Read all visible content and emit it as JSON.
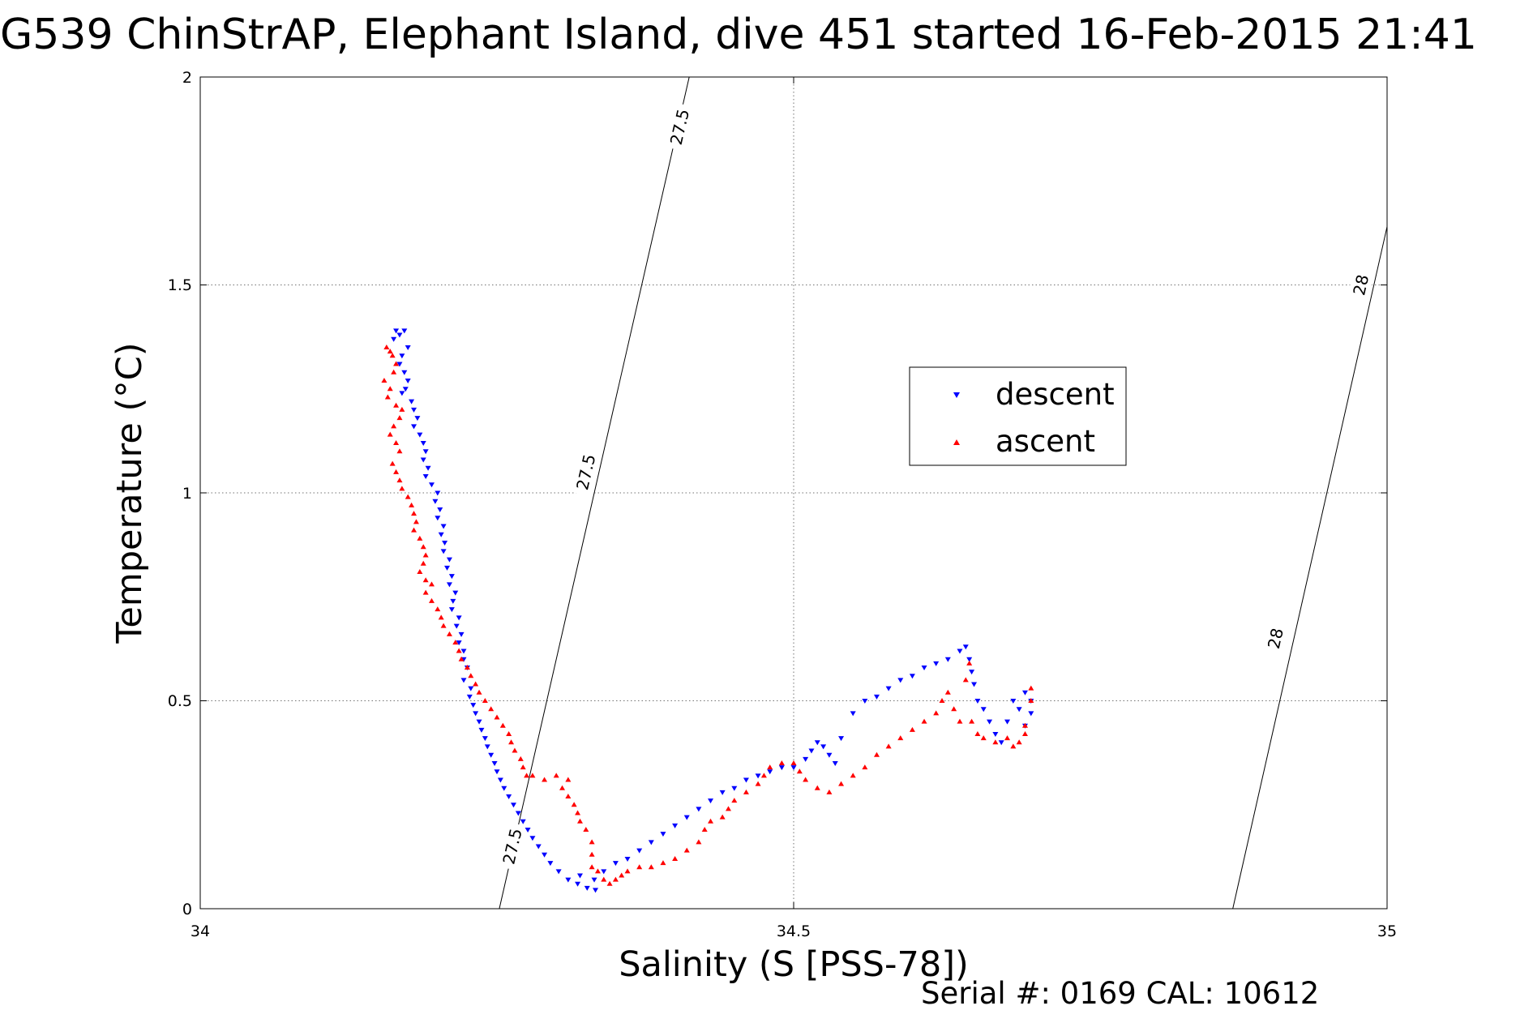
{
  "chart_data": {
    "type": "scatter",
    "title": "G539 ChinStrAP, Elephant Island, dive 451 started 16-Feb-2015 21:41",
    "xlabel": "Salinity (S [PSS-78])",
    "ylabel": "Temperature (°C)",
    "xlim": [
      34,
      35
    ],
    "ylim": [
      0,
      2
    ],
    "xticks": [
      "34",
      "34.5",
      "35"
    ],
    "yticks": [
      "0",
      "0.5",
      "1",
      "1.5",
      "2"
    ],
    "grid": true,
    "legend_position": "upper-right of center",
    "footer": "Serial #: 0169 CAL: 10612",
    "colors": {
      "descent": "#0000ff",
      "ascent": "#ff0000",
      "contour": "#000000"
    },
    "contours": [
      {
        "level": "27.5",
        "points": [
          [
            34.252,
            0.0
          ],
          [
            34.412,
            2.0
          ]
        ],
        "labels": [
          [
            34.263,
            0.15
          ],
          [
            34.325,
            1.05
          ],
          [
            34.404,
            1.88
          ]
        ]
      },
      {
        "level": "28",
        "points": [
          [
            34.87,
            0.0
          ],
          [
            35.0,
            1.64
          ]
        ],
        "labels": [
          [
            34.906,
            0.65
          ],
          [
            34.978,
            1.5
          ]
        ]
      }
    ],
    "series": [
      {
        "name": "descent",
        "marker": "triangle-down",
        "points": [
          [
            34.165,
            1.39
          ],
          [
            34.168,
            1.38
          ],
          [
            34.172,
            1.39
          ],
          [
            34.163,
            1.37
          ],
          [
            34.175,
            1.35
          ],
          [
            34.17,
            1.33
          ],
          [
            34.168,
            1.31
          ],
          [
            34.172,
            1.29
          ],
          [
            34.175,
            1.27
          ],
          [
            34.173,
            1.25
          ],
          [
            34.17,
            1.24
          ],
          [
            34.178,
            1.22
          ],
          [
            34.18,
            1.2
          ],
          [
            34.183,
            1.18
          ],
          [
            34.18,
            1.16
          ],
          [
            34.185,
            1.14
          ],
          [
            34.188,
            1.12
          ],
          [
            34.19,
            1.1
          ],
          [
            34.188,
            1.08
          ],
          [
            34.192,
            1.06
          ],
          [
            34.19,
            1.04
          ],
          [
            34.195,
            1.02
          ],
          [
            34.2,
            1.0
          ],
          [
            34.198,
            0.98
          ],
          [
            34.202,
            0.96
          ],
          [
            34.2,
            0.94
          ],
          [
            34.205,
            0.92
          ],
          [
            34.203,
            0.9
          ],
          [
            34.206,
            0.88
          ],
          [
            34.205,
            0.86
          ],
          [
            34.21,
            0.84
          ],
          [
            34.208,
            0.82
          ],
          [
            34.212,
            0.8
          ],
          [
            34.21,
            0.78
          ],
          [
            34.215,
            0.76
          ],
          [
            34.213,
            0.74
          ],
          [
            34.212,
            0.72
          ],
          [
            34.218,
            0.7
          ],
          [
            34.216,
            0.68
          ],
          [
            34.22,
            0.66
          ],
          [
            34.218,
            0.64
          ],
          [
            34.222,
            0.62
          ],
          [
            34.222,
            0.6
          ],
          [
            34.225,
            0.58
          ],
          [
            34.222,
            0.55
          ],
          [
            34.228,
            0.53
          ],
          [
            34.227,
            0.51
          ],
          [
            34.23,
            0.49
          ],
          [
            34.232,
            0.47
          ],
          [
            34.235,
            0.45
          ],
          [
            34.237,
            0.43
          ],
          [
            34.24,
            0.41
          ],
          [
            34.242,
            0.39
          ],
          [
            34.245,
            0.37
          ],
          [
            34.248,
            0.35
          ],
          [
            34.25,
            0.33
          ],
          [
            34.253,
            0.31
          ],
          [
            34.256,
            0.29
          ],
          [
            34.26,
            0.27
          ],
          [
            34.264,
            0.25
          ],
          [
            34.268,
            0.23
          ],
          [
            34.272,
            0.21
          ],
          [
            34.276,
            0.19
          ],
          [
            34.28,
            0.17
          ],
          [
            34.285,
            0.15
          ],
          [
            34.29,
            0.13
          ],
          [
            34.295,
            0.11
          ],
          [
            34.302,
            0.09
          ],
          [
            34.31,
            0.07
          ],
          [
            34.318,
            0.06
          ],
          [
            34.326,
            0.05
          ],
          [
            34.333,
            0.045
          ],
          [
            34.32,
            0.08
          ],
          [
            34.332,
            0.07
          ],
          [
            34.34,
            0.09
          ],
          [
            34.35,
            0.11
          ],
          [
            34.36,
            0.12
          ],
          [
            34.37,
            0.14
          ],
          [
            34.38,
            0.16
          ],
          [
            34.39,
            0.18
          ],
          [
            34.4,
            0.2
          ],
          [
            34.41,
            0.22
          ],
          [
            34.42,
            0.24
          ],
          [
            34.43,
            0.26
          ],
          [
            34.44,
            0.28
          ],
          [
            34.45,
            0.29
          ],
          [
            34.46,
            0.31
          ],
          [
            34.47,
            0.32
          ],
          [
            34.48,
            0.33
          ],
          [
            34.49,
            0.34
          ],
          [
            34.5,
            0.34
          ],
          [
            34.51,
            0.36
          ],
          [
            34.515,
            0.38
          ],
          [
            34.52,
            0.4
          ],
          [
            34.525,
            0.39
          ],
          [
            34.53,
            0.37
          ],
          [
            34.535,
            0.35
          ],
          [
            34.54,
            0.41
          ],
          [
            34.55,
            0.47
          ],
          [
            34.56,
            0.5
          ],
          [
            34.57,
            0.51
          ],
          [
            34.58,
            0.53
          ],
          [
            34.59,
            0.55
          ],
          [
            34.6,
            0.56
          ],
          [
            34.61,
            0.58
          ],
          [
            34.62,
            0.59
          ],
          [
            34.63,
            0.6
          ],
          [
            34.64,
            0.62
          ],
          [
            34.645,
            0.63
          ],
          [
            34.648,
            0.6
          ],
          [
            34.65,
            0.57
          ],
          [
            34.652,
            0.54
          ],
          [
            34.655,
            0.5
          ],
          [
            34.66,
            0.48
          ],
          [
            34.665,
            0.45
          ],
          [
            34.67,
            0.42
          ],
          [
            34.675,
            0.4
          ],
          [
            34.68,
            0.45
          ],
          [
            34.685,
            0.5
          ],
          [
            34.69,
            0.48
          ],
          [
            34.695,
            0.44
          ],
          [
            34.7,
            0.47
          ],
          [
            34.695,
            0.52
          ],
          [
            34.7,
            0.5
          ]
        ]
      },
      {
        "name": "ascent",
        "marker": "triangle-up",
        "points": [
          [
            34.157,
            1.35
          ],
          [
            34.16,
            1.34
          ],
          [
            34.162,
            1.33
          ],
          [
            34.165,
            1.31
          ],
          [
            34.163,
            1.29
          ],
          [
            34.155,
            1.27
          ],
          [
            34.16,
            1.25
          ],
          [
            34.158,
            1.23
          ],
          [
            34.165,
            1.21
          ],
          [
            34.17,
            1.2
          ],
          [
            34.168,
            1.18
          ],
          [
            34.163,
            1.16
          ],
          [
            34.16,
            1.14
          ],
          [
            34.165,
            1.12
          ],
          [
            34.168,
            1.1
          ],
          [
            34.162,
            1.07
          ],
          [
            34.165,
            1.05
          ],
          [
            34.168,
            1.03
          ],
          [
            34.17,
            1.01
          ],
          [
            34.175,
            0.99
          ],
          [
            34.178,
            0.97
          ],
          [
            34.18,
            0.95
          ],
          [
            34.182,
            0.93
          ],
          [
            34.18,
            0.91
          ],
          [
            34.185,
            0.89
          ],
          [
            34.188,
            0.87
          ],
          [
            34.19,
            0.85
          ],
          [
            34.188,
            0.83
          ],
          [
            34.185,
            0.81
          ],
          [
            34.19,
            0.79
          ],
          [
            34.195,
            0.78
          ],
          [
            34.19,
            0.76
          ],
          [
            34.195,
            0.74
          ],
          [
            34.2,
            0.72
          ],
          [
            34.203,
            0.7
          ],
          [
            34.205,
            0.68
          ],
          [
            34.21,
            0.66
          ],
          [
            34.215,
            0.64
          ],
          [
            34.218,
            0.62
          ],
          [
            34.22,
            0.6
          ],
          [
            34.225,
            0.58
          ],
          [
            34.228,
            0.56
          ],
          [
            34.232,
            0.54
          ],
          [
            34.235,
            0.52
          ],
          [
            34.24,
            0.5
          ],
          [
            34.245,
            0.48
          ],
          [
            34.25,
            0.46
          ],
          [
            34.255,
            0.44
          ],
          [
            34.26,
            0.42
          ],
          [
            34.262,
            0.4
          ],
          [
            34.265,
            0.38
          ],
          [
            34.27,
            0.36
          ],
          [
            34.272,
            0.34
          ],
          [
            34.275,
            0.32
          ],
          [
            34.28,
            0.32
          ],
          [
            34.29,
            0.31
          ],
          [
            34.3,
            0.32
          ],
          [
            34.31,
            0.31
          ],
          [
            34.305,
            0.29
          ],
          [
            34.31,
            0.27
          ],
          [
            34.315,
            0.25
          ],
          [
            34.318,
            0.23
          ],
          [
            34.32,
            0.21
          ],
          [
            34.325,
            0.19
          ],
          [
            34.33,
            0.16
          ],
          [
            34.33,
            0.13
          ],
          [
            34.33,
            0.1
          ],
          [
            34.335,
            0.09
          ],
          [
            34.34,
            0.07
          ],
          [
            34.345,
            0.06
          ],
          [
            34.35,
            0.07
          ],
          [
            34.355,
            0.08
          ],
          [
            34.36,
            0.09
          ],
          [
            34.37,
            0.1
          ],
          [
            34.38,
            0.1
          ],
          [
            34.39,
            0.11
          ],
          [
            34.4,
            0.12
          ],
          [
            34.41,
            0.14
          ],
          [
            34.42,
            0.16
          ],
          [
            34.425,
            0.19
          ],
          [
            34.43,
            0.21
          ],
          [
            34.44,
            0.22
          ],
          [
            34.445,
            0.24
          ],
          [
            34.45,
            0.26
          ],
          [
            34.46,
            0.28
          ],
          [
            34.47,
            0.3
          ],
          [
            34.475,
            0.32
          ],
          [
            34.48,
            0.34
          ],
          [
            34.49,
            0.35
          ],
          [
            34.5,
            0.35
          ],
          [
            34.505,
            0.33
          ],
          [
            34.51,
            0.31
          ],
          [
            34.52,
            0.29
          ],
          [
            34.53,
            0.28
          ],
          [
            34.54,
            0.3
          ],
          [
            34.55,
            0.32
          ],
          [
            34.56,
            0.34
          ],
          [
            34.57,
            0.37
          ],
          [
            34.58,
            0.39
          ],
          [
            34.59,
            0.41
          ],
          [
            34.6,
            0.43
          ],
          [
            34.61,
            0.45
          ],
          [
            34.62,
            0.47
          ],
          [
            34.625,
            0.5
          ],
          [
            34.63,
            0.52
          ],
          [
            34.635,
            0.48
          ],
          [
            34.64,
            0.45
          ],
          [
            34.645,
            0.55
          ],
          [
            34.648,
            0.59
          ],
          [
            34.65,
            0.45
          ],
          [
            34.655,
            0.42
          ],
          [
            34.66,
            0.41
          ],
          [
            34.67,
            0.4
          ],
          [
            34.68,
            0.41
          ],
          [
            34.685,
            0.39
          ],
          [
            34.69,
            0.4
          ],
          [
            34.695,
            0.42
          ],
          [
            34.7,
            0.5
          ],
          [
            34.7,
            0.53
          ],
          [
            34.695,
            0.44
          ]
        ]
      }
    ]
  }
}
